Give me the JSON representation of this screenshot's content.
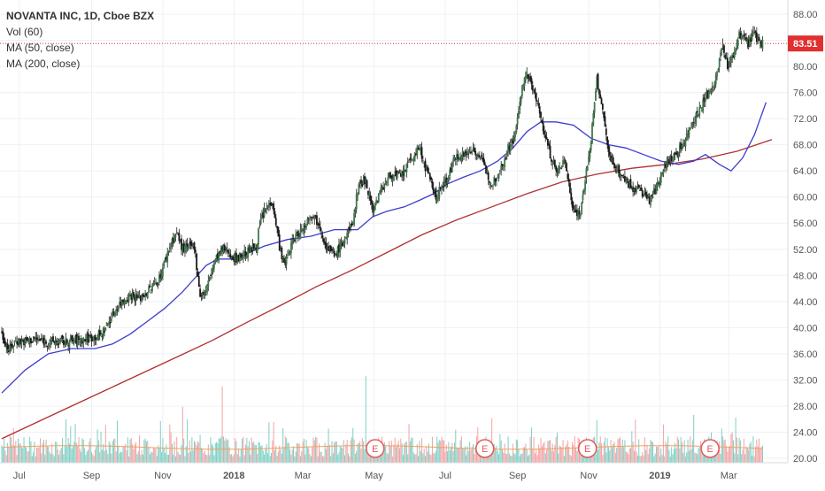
{
  "legend": {
    "symbol_line": "NOVANTA INC, 1D, Cboe BZX",
    "vol_line": "Vol (60)",
    "ma50_line": "MA (50, close)",
    "ma200_line": "MA (200, close)"
  },
  "last_price_label": "83.51",
  "earnings_marker_label": "E",
  "colors": {
    "up": "#3f7a4a",
    "down": "#1a1a1a",
    "wick": "#222222",
    "ma50": "#3d3dcc",
    "ma200": "#b03030",
    "vol_up": "#7fcfc4",
    "vol_down": "#f2a3a3",
    "vol_ma": "#f0a060",
    "last_price": "#e03030",
    "axis_text": "#555555"
  },
  "chart_data": {
    "type": "candlestick",
    "title": "NOVANTA INC, 1D, Cboe BZX",
    "price_axis": {
      "ylim": [
        20,
        88
      ],
      "ticks": [
        "20.00",
        "24.00",
        "28.00",
        "32.00",
        "36.00",
        "40.00",
        "44.00",
        "48.00",
        "52.00",
        "56.00",
        "60.00",
        "64.00",
        "68.00",
        "72.00",
        "76.00",
        "80.00",
        "84.00",
        "88.00"
      ]
    },
    "time_axis": {
      "ticks": [
        "Jul",
        "Sep",
        "Nov",
        "2018",
        "Mar",
        "May",
        "Jul",
        "Sep",
        "Nov",
        "2019",
        "Mar"
      ],
      "tick_days": [
        15,
        77,
        138,
        199,
        258,
        319,
        380,
        442,
        503,
        564,
        623
      ],
      "xlim_days": [
        0,
        660
      ]
    },
    "close_path_days": [
      0,
      6,
      12,
      18,
      28,
      40,
      55,
      70,
      85,
      100,
      110,
      118,
      125,
      135,
      145,
      150,
      155,
      165,
      170,
      175,
      180,
      185,
      190,
      195,
      200,
      210,
      218,
      222,
      226,
      232,
      238,
      242,
      250,
      258,
      265,
      272,
      278,
      285,
      292,
      300,
      306,
      312,
      318,
      326,
      334,
      342,
      350,
      358,
      364,
      372,
      382,
      390,
      398,
      404,
      410,
      420,
      428,
      434,
      440,
      446,
      450,
      455,
      462,
      470,
      476,
      482,
      490,
      496,
      500,
      504,
      510,
      516,
      520,
      530,
      540,
      548,
      555,
      560,
      568,
      575,
      580,
      586,
      592,
      600,
      606,
      612,
      618,
      622,
      628,
      632,
      636,
      640,
      645,
      650
    ],
    "close_path_values": [
      39,
      36.5,
      38,
      37.8,
      38.2,
      37.8,
      37.8,
      38.2,
      38.8,
      43.5,
      45,
      44.5,
      45.5,
      47.5,
      53,
      54.5,
      52,
      52.5,
      45,
      45.5,
      49,
      51,
      52,
      51.5,
      50.5,
      51.5,
      52.5,
      56.5,
      58,
      59.5,
      52.5,
      49.5,
      53.5,
      55.2,
      57.5,
      56,
      52.5,
      51,
      53,
      55.5,
      62,
      62.5,
      58,
      61.5,
      63.5,
      63,
      65.5,
      67.5,
      64,
      60,
      63,
      66.5,
      66.5,
      67.5,
      66,
      62,
      64.5,
      67.5,
      69.5,
      77,
      78.5,
      77,
      72,
      66.5,
      63.5,
      66,
      58,
      57.5,
      63,
      67,
      78,
      72,
      66.5,
      63.5,
      61.5,
      61,
      59.5,
      61,
      65,
      66,
      67,
      69,
      71.5,
      74,
      76,
      78,
      83.5,
      80,
      82,
      85,
      84.5,
      83.5,
      85,
      83.51
    ],
    "ma50": {
      "name": "MA (50, close)",
      "days": [
        0,
        20,
        40,
        60,
        80,
        95,
        110,
        125,
        140,
        155,
        165,
        175,
        185,
        200,
        212,
        225,
        245,
        265,
        285,
        305,
        318,
        330,
        345,
        358,
        370,
        382,
        395,
        410,
        425,
        438,
        450,
        462,
        475,
        490,
        505,
        520,
        535,
        550,
        565,
        580,
        593,
        603,
        615,
        625,
        635,
        645,
        655
      ],
      "values": [
        30,
        33.5,
        36,
        36.8,
        36.8,
        37.5,
        39,
        41,
        43,
        45.5,
        47.5,
        49.5,
        50.5,
        50.5,
        51.5,
        52.5,
        53.5,
        54,
        55,
        55,
        57,
        57.8,
        58.5,
        59.5,
        60.5,
        62,
        63,
        64,
        65.5,
        67.5,
        70,
        71.5,
        71.5,
        71,
        69,
        68,
        67.5,
        66.5,
        65.5,
        65,
        65.5,
        66.5,
        65,
        64,
        66,
        69.5,
        74.5
      ]
    },
    "ma200": {
      "name": "MA (200, close)",
      "days": [
        0,
        30,
        60,
        90,
        120,
        150,
        180,
        210,
        240,
        270,
        300,
        330,
        360,
        390,
        420,
        450,
        480,
        510,
        540,
        570,
        600,
        630,
        660
      ],
      "values": [
        23,
        25.5,
        28,
        30.5,
        33,
        35.5,
        38,
        40.8,
        43.5,
        46.3,
        48.8,
        51.5,
        54.2,
        56.5,
        58.5,
        60.5,
        62.3,
        63.5,
        64.4,
        65,
        65.8,
        67,
        68.8
      ]
    },
    "earnings_days": [
      320,
      414,
      502,
      607
    ],
    "volume": {
      "name": "Vol (60)",
      "relative_max": 1.0,
      "spike_days": [
        155,
        189,
        312,
        510,
        593
      ],
      "spike_levels": [
        0.55,
        0.75,
        0.85,
        0.42,
        0.47
      ]
    }
  }
}
